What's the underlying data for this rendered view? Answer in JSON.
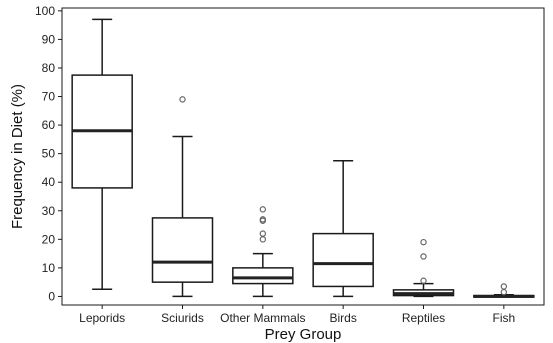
{
  "chart_data": {
    "type": "box",
    "xlabel": "Prey Group",
    "ylabel": "Frequency in Diet (%)",
    "ylim": [
      -3,
      101
    ],
    "yticks": [
      0,
      10,
      20,
      30,
      40,
      50,
      60,
      70,
      80,
      90,
      100
    ],
    "grid": false,
    "legend": "none",
    "groups": [
      {
        "category": "Leporids",
        "whisker_low": 2.5,
        "q1": 38,
        "median": 58,
        "q3": 77.5,
        "whisker_high": 97,
        "outliers": []
      },
      {
        "category": "Sciurids",
        "whisker_low": 0,
        "q1": 5,
        "median": 12,
        "q3": 27.5,
        "whisker_high": 56,
        "outliers": [
          69
        ]
      },
      {
        "category": "Other Mammals",
        "whisker_low": 0,
        "q1": 4.5,
        "median": 6.5,
        "q3": 10,
        "whisker_high": 15,
        "outliers": [
          20,
          22,
          26.5,
          27,
          30.5
        ]
      },
      {
        "category": "Birds",
        "whisker_low": 0,
        "q1": 3.5,
        "median": 11.5,
        "q3": 22,
        "whisker_high": 47.5,
        "outliers": []
      },
      {
        "category": "Reptiles",
        "whisker_low": 0,
        "q1": 0.3,
        "median": 1,
        "q3": 2.3,
        "whisker_high": 4.5,
        "outliers": [
          5.5,
          14,
          19
        ]
      },
      {
        "category": "Fish",
        "whisker_low": 0,
        "q1": 0,
        "median": 0,
        "q3": 0.3,
        "whisker_high": 0.6,
        "outliers": [
          1.5,
          3.5
        ]
      }
    ]
  },
  "colors": {
    "box_stroke": "#1a1a1a",
    "median_stroke": "#222222",
    "outlier_stroke": "#666666",
    "background": "#ffffff"
  }
}
